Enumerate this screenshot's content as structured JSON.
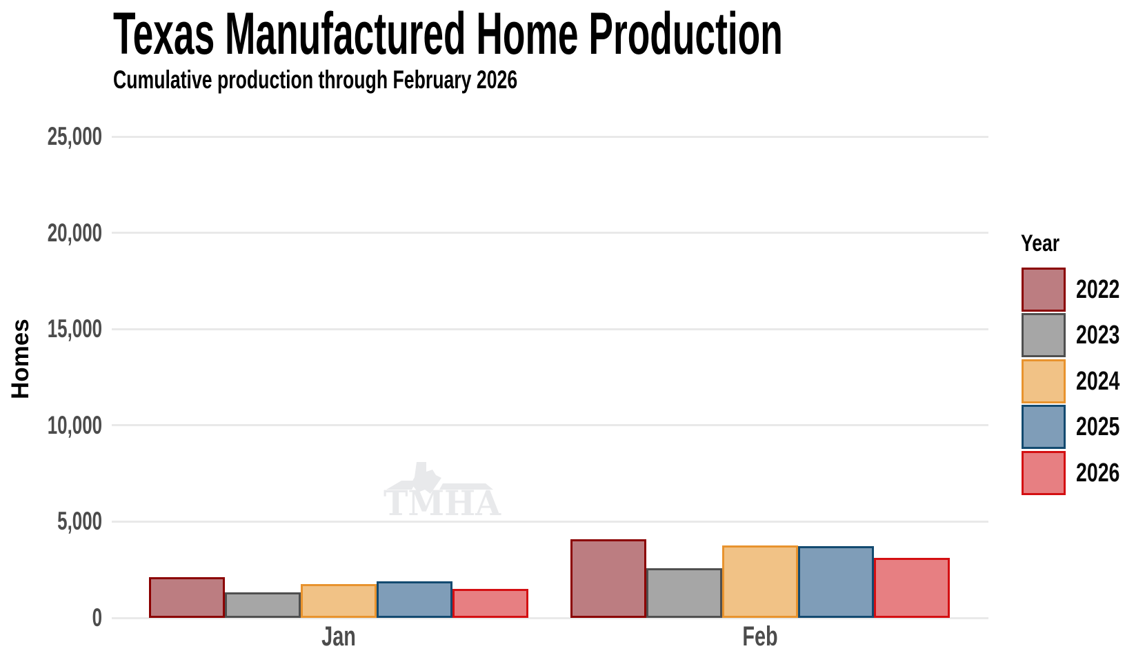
{
  "header": {
    "title": "Texas Manufactured Home Production",
    "subtitle": "Cumulative production through February 2026"
  },
  "chart_data": {
    "type": "bar",
    "title": "Texas Manufactured Home Production",
    "subtitle": "Cumulative production through February 2026",
    "xlabel": "",
    "ylabel": "Homes",
    "categories": [
      "Jan",
      "Feb"
    ],
    "series": [
      {
        "name": "2022",
        "values": [
          2100,
          4090
        ],
        "fill": "#bc7d81",
        "stroke": "#8b0000"
      },
      {
        "name": "2023",
        "values": [
          1320,
          2580
        ],
        "fill": "#a6a6a6",
        "stroke": "#4f4f4f"
      },
      {
        "name": "2024",
        "values": [
          1760,
          3770
        ],
        "fill": "#f1c286",
        "stroke": "#e8932e"
      },
      {
        "name": "2025",
        "values": [
          1900,
          3740
        ],
        "fill": "#7f9db8",
        "stroke": "#134a70"
      },
      {
        "name": "2026",
        "values": [
          1500,
          3120
        ],
        "fill": "#e77f82",
        "stroke": "#d40f12"
      }
    ],
    "ylim": [
      0,
      25000
    ],
    "yticks": [
      {
        "value": 0,
        "label": "0"
      },
      {
        "value": 5000,
        "label": "5,000"
      },
      {
        "value": 10000,
        "label": "10,000"
      },
      {
        "value": 15000,
        "label": "15,000"
      },
      {
        "value": 20000,
        "label": "20,000"
      },
      {
        "value": 25000,
        "label": "25,000"
      }
    ],
    "legend_title": "Year",
    "legend_position": "right",
    "grid": "horizontal"
  },
  "watermark": {
    "text": "TMHA"
  },
  "colors": {
    "background": "#ffffff",
    "grid": "#e9e9e9",
    "tick_label": "#4c4c4c",
    "text": "#000000",
    "watermark": "#e8e9eb"
  }
}
